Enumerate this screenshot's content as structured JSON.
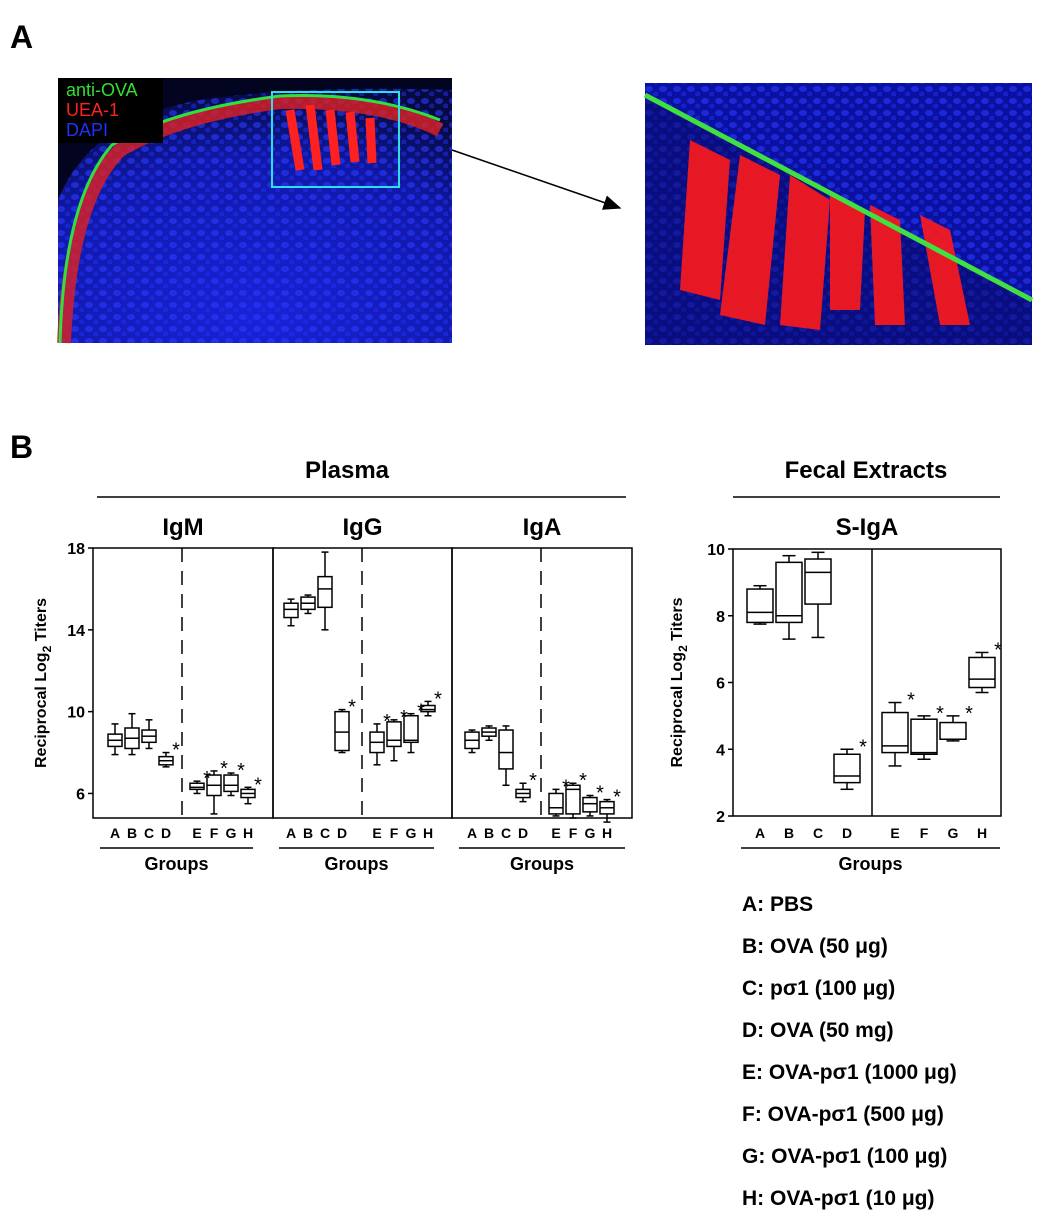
{
  "panel_a": {
    "label": "A",
    "legend": [
      "anti-OVA",
      "UEA-1",
      "DAPI"
    ]
  },
  "panel_b": {
    "label": "B",
    "headers": {
      "plasma": "Plasma",
      "fecal": "Fecal Extracts"
    }
  },
  "chart_data": [
    {
      "type": "box",
      "title": "IgM",
      "ylabel": [
        "Reciprocal Log",
        "2",
        " Titers"
      ],
      "xlabel": "Groups",
      "categories": [
        "A",
        "B",
        "C",
        "D",
        "E",
        "F",
        "G",
        "H"
      ],
      "divider": "dashed",
      "ylim": [
        4.8,
        18
      ],
      "yticks": [
        6,
        10,
        14,
        18
      ],
      "min": [
        7.9,
        7.9,
        8.2,
        7.3,
        6.0,
        5.0,
        5.9,
        5.5
      ],
      "q1": [
        8.3,
        8.2,
        8.5,
        7.4,
        6.2,
        5.9,
        6.1,
        5.8
      ],
      "median": [
        8.6,
        8.7,
        8.8,
        7.6,
        6.3,
        6.4,
        6.4,
        6.0
      ],
      "q3": [
        8.9,
        9.2,
        9.1,
        7.8,
        6.5,
        6.9,
        6.9,
        6.2
      ],
      "max": [
        9.4,
        9.9,
        9.6,
        8.0,
        6.6,
        7.1,
        7.0,
        6.3
      ],
      "annotations": [
        {
          "category": "D",
          "text": "*"
        },
        {
          "category": "E",
          "text": "*"
        },
        {
          "category": "F",
          "text": "*"
        },
        {
          "category": "G",
          "text": "*"
        },
        {
          "category": "H",
          "text": "*"
        }
      ]
    },
    {
      "type": "box",
      "title": "IgG",
      "xlabel": "Groups",
      "categories": [
        "A",
        "B",
        "C",
        "D",
        "E",
        "F",
        "G",
        "H"
      ],
      "divider": "dashed",
      "ylim": [
        4.8,
        18
      ],
      "min": [
        14.2,
        14.8,
        14.0,
        8.0,
        7.4,
        7.6,
        8.0,
        9.8
      ],
      "q1": [
        14.6,
        15.0,
        15.1,
        8.1,
        8.0,
        8.3,
        8.5,
        10.0
      ],
      "median": [
        15.0,
        15.3,
        16.0,
        9.0,
        8.5,
        8.6,
        8.6,
        10.1
      ],
      "q3": [
        15.3,
        15.6,
        16.6,
        10.0,
        9.0,
        9.5,
        9.8,
        10.3
      ],
      "max": [
        15.5,
        15.7,
        17.8,
        10.1,
        9.4,
        9.6,
        9.9,
        10.5
      ],
      "annotations": [
        {
          "category": "D",
          "text": "*"
        },
        {
          "category": "E",
          "text": "*"
        },
        {
          "category": "F",
          "text": "*"
        },
        {
          "category": "G",
          "text": "*"
        },
        {
          "category": "H",
          "text": "*"
        }
      ]
    },
    {
      "type": "box",
      "title": "IgA",
      "xlabel": "Groups",
      "categories": [
        "A",
        "B",
        "C",
        "D",
        "E",
        "F",
        "G",
        "H"
      ],
      "divider": "dashed",
      "ylim": [
        4.8,
        18
      ],
      "min": [
        8.0,
        8.6,
        6.4,
        5.6,
        4.9,
        4.8,
        4.9,
        4.6
      ],
      "q1": [
        8.2,
        8.8,
        7.2,
        5.8,
        5.0,
        5.0,
        5.1,
        5.0
      ],
      "median": [
        8.6,
        9.0,
        8.0,
        6.0,
        5.3,
        6.2,
        5.5,
        5.3
      ],
      "q3": [
        9.0,
        9.2,
        9.1,
        6.2,
        6.0,
        6.4,
        5.8,
        5.6
      ],
      "max": [
        9.1,
        9.3,
        9.3,
        6.5,
        6.2,
        6.5,
        5.9,
        5.7
      ],
      "annotations": [
        {
          "category": "D",
          "text": "*"
        },
        {
          "category": "E",
          "text": "*"
        },
        {
          "category": "F",
          "text": "*"
        },
        {
          "category": "G",
          "text": "*"
        },
        {
          "category": "H",
          "text": "*"
        }
      ]
    },
    {
      "type": "box",
      "title": "S-IgA",
      "ylabel": [
        "Reciprocal Log",
        "2",
        " Titers"
      ],
      "xlabel": "Groups",
      "categories": [
        "A",
        "B",
        "C",
        "D",
        "E",
        "F",
        "G",
        "H"
      ],
      "divider": "solid",
      "ylim": [
        2,
        10
      ],
      "yticks": [
        2,
        4,
        6,
        8,
        10
      ],
      "min": [
        7.75,
        7.3,
        7.35,
        2.8,
        3.5,
        3.7,
        4.25,
        5.7
      ],
      "q1": [
        7.8,
        7.8,
        8.35,
        3.0,
        3.9,
        3.85,
        4.3,
        5.85
      ],
      "median": [
        8.1,
        8.0,
        9.3,
        3.2,
        4.1,
        3.9,
        4.3,
        6.1
      ],
      "q3": [
        8.8,
        9.6,
        9.7,
        3.85,
        5.1,
        4.9,
        4.8,
        6.75
      ],
      "max": [
        8.9,
        9.8,
        9.9,
        4.0,
        5.4,
        5.0,
        5.0,
        6.9
      ],
      "annotations": [
        {
          "category": "D",
          "text": "*"
        },
        {
          "category": "E",
          "text": "*"
        },
        {
          "category": "F",
          "text": "*"
        },
        {
          "category": "G",
          "text": "*"
        },
        {
          "category": "H",
          "text": "*"
        }
      ]
    }
  ],
  "group_legend": [
    "A: PBS",
    "B: OVA (50 μg)",
    "C: pσ1 (100 μg)",
    "D: OVA (50 mg)",
    "E: OVA-pσ1 (1000 μg)",
    "F: OVA-pσ1 (500 μg)",
    "G: OVA-pσ1 (100 μg)",
    "H: OVA-pσ1 (10 μg)"
  ]
}
